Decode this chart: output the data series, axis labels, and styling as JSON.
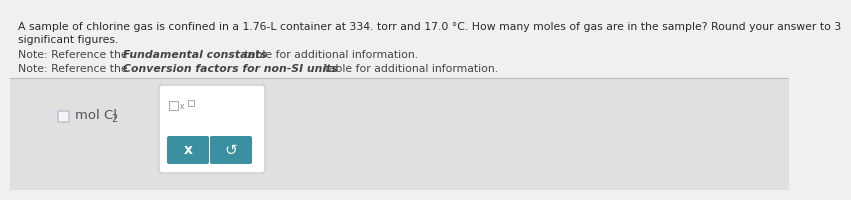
{
  "background_color": "#d8d8d8",
  "top_panel_color": "#f0f0f0",
  "bottom_panel_color": "#e0e0e0",
  "line1": "A sample of chlorine gas is confined in a 1.76-L container at 334. torr and 17.0 °C. How many moles of gas are in the sample? Round your answer to 3",
  "line2": "significant figures.",
  "note1_normal": "Note: Reference the ",
  "note1_bold": "Fundamental constants",
  "note1_end": " table for additional information.",
  "note2_normal": "Note: Reference the ",
  "note2_bold": "Conversion factors for non-SI units",
  "note2_end": " table for additional information.",
  "label_text": "mol Cl",
  "label_subscript": "2",
  "checkbox_color": "#b8c8d8",
  "button_color": "#3a8fa0",
  "button_x_label": "x",
  "button_undo_label": "↺",
  "text_color": "#2a2a2a",
  "note_color": "#444444",
  "font_size_main": 7.8,
  "font_size_note": 7.8,
  "font_size_label": 9.5
}
